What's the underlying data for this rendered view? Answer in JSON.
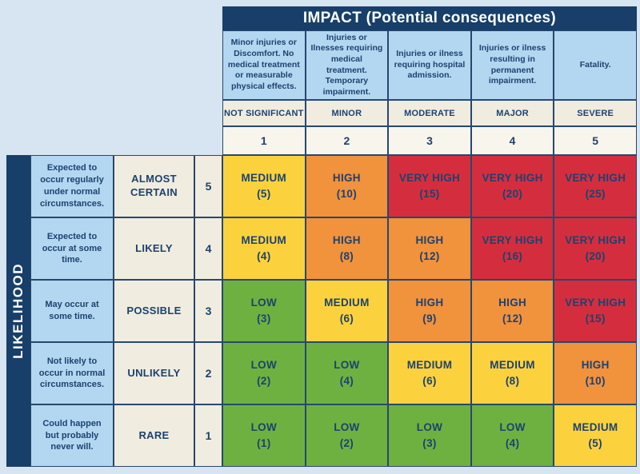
{
  "colors": {
    "navy": "#173F6A",
    "border": "#26486F",
    "page_bg": "#D7E4F1",
    "light_blue": "#B3D7F0",
    "cream": "#F0ECE0",
    "cream_light": "#F8F5EC",
    "text_navy": "#1D4270",
    "green": "#6FB140",
    "yellow": "#FBD23D",
    "orange": "#F1923C",
    "red": "#D42E3E"
  },
  "impact_header": {
    "title": "IMPACT (Potential consequences)"
  },
  "likelihood_header": {
    "title": "LIKELIHOOD"
  },
  "impact_columns": [
    {
      "description": "Minor injuries or Discomfort. No medical treatment or measurable physical effects.",
      "severity": "NOT SIGNIFICANT",
      "value": "1"
    },
    {
      "description": "Injuries or Ilnesses requiring medical treatment. Temporary impairment.",
      "severity": "MINOR",
      "value": "2"
    },
    {
      "description": "Injuries or ilness requiring hospital admission.",
      "severity": "MODERATE",
      "value": "3"
    },
    {
      "description": "Injuries or ilness resulting in permanent impairment.",
      "severity": "MAJOR",
      "value": "4"
    },
    {
      "description": "Fatality.",
      "severity": "SEVERE",
      "value": "5"
    }
  ],
  "likelihood_rows": [
    {
      "description": "Expected to occur regularly under normal circumstances.",
      "label": "ALMOST CERTAIN",
      "value": "5",
      "cells": [
        {
          "level": "MEDIUM",
          "score": "(5)",
          "color": "yellow"
        },
        {
          "level": "HIGH",
          "score": "(10)",
          "color": "orange"
        },
        {
          "level": "VERY HIGH",
          "score": "(15)",
          "color": "red"
        },
        {
          "level": "VERY HIGH",
          "score": "(20)",
          "color": "red"
        },
        {
          "level": "VERY HIGH",
          "score": "(25)",
          "color": "red"
        }
      ]
    },
    {
      "description": "Expected to occur at some time.",
      "label": "LIKELY",
      "value": "4",
      "cells": [
        {
          "level": "MEDIUM",
          "score": "(4)",
          "color": "yellow"
        },
        {
          "level": "HIGH",
          "score": "(8)",
          "color": "orange"
        },
        {
          "level": "HIGH",
          "score": "(12)",
          "color": "orange"
        },
        {
          "level": "VERY HIGH",
          "score": "(16)",
          "color": "red"
        },
        {
          "level": "VERY HIGH",
          "score": "(20)",
          "color": "red"
        }
      ]
    },
    {
      "description": "May occur at some time.",
      "label": "POSSIBLE",
      "value": "3",
      "cells": [
        {
          "level": "LOW",
          "score": "(3)",
          "color": "green"
        },
        {
          "level": "MEDIUM",
          "score": "(6)",
          "color": "yellow"
        },
        {
          "level": "HIGH",
          "score": "(9)",
          "color": "orange"
        },
        {
          "level": "HIGH",
          "score": "(12)",
          "color": "orange"
        },
        {
          "level": "VERY HIGH",
          "score": "(15)",
          "color": "red"
        }
      ]
    },
    {
      "description": "Not likely to occur in normal circumstances.",
      "label": "UNLIKELY",
      "value": "2",
      "cells": [
        {
          "level": "LOW",
          "score": "(2)",
          "color": "green"
        },
        {
          "level": "LOW",
          "score": "(4)",
          "color": "green"
        },
        {
          "level": "MEDIUM",
          "score": "(6)",
          "color": "yellow"
        },
        {
          "level": "MEDIUM",
          "score": "(8)",
          "color": "yellow"
        },
        {
          "level": "HIGH",
          "score": "(10)",
          "color": "orange"
        }
      ]
    },
    {
      "description": "Could happen but probably never will.",
      "label": "RARE",
      "value": "1",
      "cells": [
        {
          "level": "LOW",
          "score": "(1)",
          "color": "green"
        },
        {
          "level": "LOW",
          "score": "(2)",
          "color": "green"
        },
        {
          "level": "LOW",
          "score": "(3)",
          "color": "green"
        },
        {
          "level": "LOW",
          "score": "(4)",
          "color": "green"
        },
        {
          "level": "MEDIUM",
          "score": "(5)",
          "color": "yellow"
        }
      ]
    }
  ]
}
